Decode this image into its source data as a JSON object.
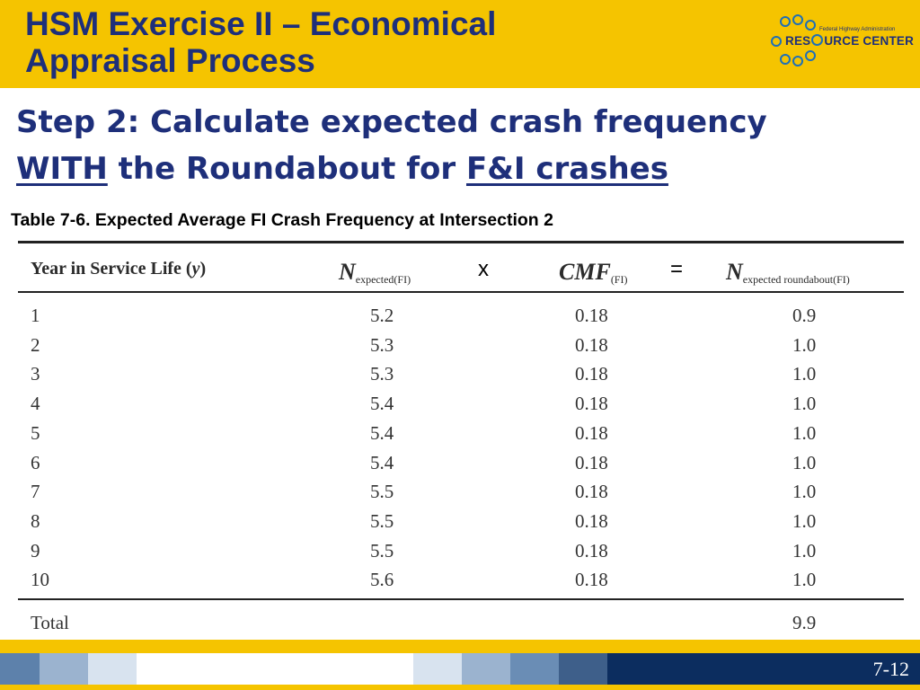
{
  "header": {
    "title_line1": "HSM Exercise II – Economical",
    "title_line2": "Appraisal Process"
  },
  "logo": {
    "subtext": "Federal Highway Administration",
    "brand_left": "RES",
    "brand_right": "URCE CENTER"
  },
  "subtitle": {
    "line1": "Step 2: Calculate expected crash frequency",
    "with": "WITH",
    "mid": " the Roundabout for ",
    "fi": "F&I crashes"
  },
  "table": {
    "caption": "Table 7-6. Expected Average FI Crash Frequency at Intersection 2",
    "headers": {
      "col1_text": "Year in Service Life (",
      "col1_var": "y",
      "col1_close": ")",
      "n1_symbol": "N",
      "n1_sub": "expected(FI)",
      "times": "x",
      "cmf_symbol": "CMF",
      "cmf_sub": "(FI)",
      "equals": "=",
      "n2_symbol": "N",
      "n2_sub": "expected roundabout(FI)"
    },
    "rows": [
      {
        "year": "1",
        "n": "5.2",
        "cmf": "0.18",
        "result": "0.9"
      },
      {
        "year": "2",
        "n": "5.3",
        "cmf": "0.18",
        "result": "1.0"
      },
      {
        "year": "3",
        "n": "5.3",
        "cmf": "0.18",
        "result": "1.0"
      },
      {
        "year": "4",
        "n": "5.4",
        "cmf": "0.18",
        "result": "1.0"
      },
      {
        "year": "5",
        "n": "5.4",
        "cmf": "0.18",
        "result": "1.0"
      },
      {
        "year": "6",
        "n": "5.4",
        "cmf": "0.18",
        "result": "1.0"
      },
      {
        "year": "7",
        "n": "5.5",
        "cmf": "0.18",
        "result": "1.0"
      },
      {
        "year": "8",
        "n": "5.5",
        "cmf": "0.18",
        "result": "1.0"
      },
      {
        "year": "9",
        "n": "5.5",
        "cmf": "0.18",
        "result": "1.0"
      },
      {
        "year": "10",
        "n": "5.6",
        "cmf": "0.18",
        "result": "1.0"
      }
    ],
    "total": {
      "label": "Total",
      "value": "9.9"
    }
  },
  "footer": {
    "page_number": "7-12"
  },
  "colors": {
    "header_yellow": "#f5c400",
    "title_navy": "#1e2f7a",
    "logo_blue": "#1d6fb8",
    "footer_navy": "#0c2d5f"
  }
}
